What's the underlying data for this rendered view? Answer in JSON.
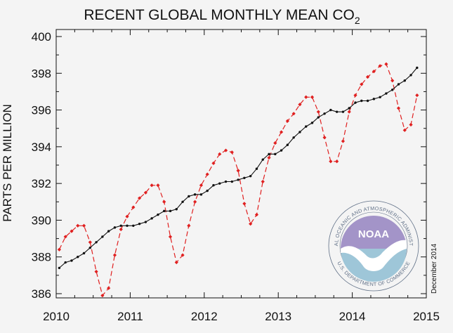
{
  "chart_data": {
    "type": "line",
    "title": "RECENT GLOBAL MONTHLY MEAN CO",
    "title_subscript": "2",
    "ylabel": "PARTS PER MILLION",
    "xlabel": "",
    "note": "December 2014",
    "xlim": [
      2010,
      2015
    ],
    "ylim": [
      386,
      400
    ],
    "x_ticks": [
      "2010",
      "2011",
      "2012",
      "2013",
      "2014",
      "2015"
    ],
    "y_ticks": [
      "386",
      "388",
      "390",
      "392",
      "394",
      "396",
      "398",
      "400"
    ],
    "grid": false,
    "legend": "none",
    "x": [
      "2010-01",
      "2010-02",
      "2010-03",
      "2010-04",
      "2010-05",
      "2010-06",
      "2010-07",
      "2010-08",
      "2010-09",
      "2010-10",
      "2010-11",
      "2010-12",
      "2011-01",
      "2011-02",
      "2011-03",
      "2011-04",
      "2011-05",
      "2011-06",
      "2011-07",
      "2011-08",
      "2011-09",
      "2011-10",
      "2011-11",
      "2011-12",
      "2012-01",
      "2012-02",
      "2012-03",
      "2012-04",
      "2012-05",
      "2012-06",
      "2012-07",
      "2012-08",
      "2012-09",
      "2012-10",
      "2012-11",
      "2012-12",
      "2013-01",
      "2013-02",
      "2013-03",
      "2013-04",
      "2013-05",
      "2013-06",
      "2013-07",
      "2013-08",
      "2013-09",
      "2013-10",
      "2013-11",
      "2013-12",
      "2014-01",
      "2014-02",
      "2014-03",
      "2014-04",
      "2014-05",
      "2014-06",
      "2014-07",
      "2014-08",
      "2014-09",
      "2014-10",
      "2014-11"
    ],
    "series": [
      {
        "style": "dashed-diamond",
        "color": "#e02020",
        "values": [
          388.4,
          389.1,
          389.4,
          389.7,
          389.7,
          388.8,
          387.2,
          385.9,
          386.3,
          388.1,
          389.5,
          390.2,
          390.7,
          391.2,
          391.5,
          391.9,
          391.9,
          391.0,
          389.1,
          387.7,
          388.1,
          389.7,
          391.0,
          391.9,
          392.5,
          393.1,
          393.6,
          393.8,
          393.7,
          392.7,
          390.9,
          389.8,
          390.3,
          392.1,
          393.4,
          394.2,
          394.8,
          395.4,
          395.8,
          396.3,
          396.7,
          396.7,
          395.9,
          394.5,
          393.2,
          393.2,
          394.3,
          395.9,
          396.8,
          397.4,
          397.8,
          398.1,
          398.4,
          398.5,
          397.6,
          396.1,
          394.9,
          395.2,
          396.8
        ]
      },
      {
        "style": "solid-dot",
        "color": "#111111",
        "values": [
          387.4,
          387.7,
          387.8,
          388.0,
          388.2,
          388.5,
          388.8,
          389.1,
          389.4,
          389.6,
          389.7,
          389.7,
          389.7,
          389.8,
          389.9,
          390.1,
          390.3,
          390.5,
          390.5,
          390.6,
          391.0,
          391.3,
          391.4,
          391.4,
          391.6,
          391.9,
          392.0,
          392.1,
          392.1,
          392.2,
          392.3,
          392.4,
          392.8,
          393.3,
          393.6,
          393.6,
          393.8,
          394.1,
          394.5,
          394.8,
          395.1,
          395.3,
          395.6,
          395.8,
          396.0,
          395.9,
          395.9,
          396.1,
          396.4,
          396.5,
          396.5,
          396.6,
          396.7,
          396.9,
          397.1,
          397.4,
          397.6,
          397.9,
          398.3
        ]
      }
    ]
  },
  "logo": {
    "word": "NOAA",
    "ring_top": "NATIONAL OCEANIC AND ATMOSPHERIC ADMINISTRATION",
    "ring_bottom": "U.S. DEPARTMENT OF COMMERCE",
    "colors": {
      "sky": "#a394c8",
      "ocean": "#9ec6d8",
      "ring": "#5f6f86",
      "bird": "#ffffff"
    }
  }
}
